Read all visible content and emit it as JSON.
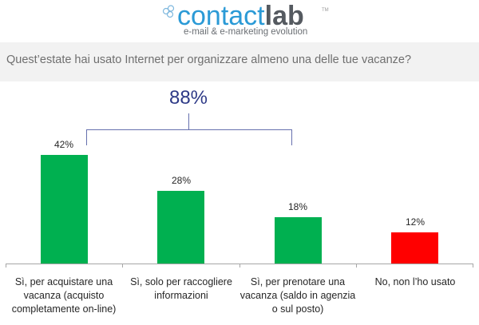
{
  "logo": {
    "word_part1": "contact",
    "word_part2": "lab",
    "tm": "TM",
    "tagline": "e-mail & e-marketing evolution",
    "icon": "bubbles-icon",
    "colors": {
      "contact": "#2b9ad6",
      "lab": "#555a60"
    }
  },
  "question": "Quest’estate hai usato Internet per organizzare almeno una delle tue vacanze?",
  "total_label": "88%",
  "chart_data": {
    "type": "bar",
    "title": "Quest’estate hai usato Internet per organizzare almeno una delle tue vacanze?",
    "categories": [
      "Sì, per acquistare una vacanza (acquisto completamente on-line)",
      "Sì, solo per raccogliere informazioni",
      "Sì, per prenotare una vacanza (saldo in agenzia o sul posto)",
      "No, non l’ho usato"
    ],
    "values": [
      42,
      28,
      18,
      12
    ],
    "value_labels": [
      "42%",
      "28%",
      "18%",
      "12%"
    ],
    "colors": [
      "#00b050",
      "#00b050",
      "#00b050",
      "#ff0000"
    ],
    "annotation": {
      "text": "88%",
      "spans_categories": [
        0,
        1,
        2
      ],
      "type": "bracket"
    },
    "xlabel": "",
    "ylabel": "",
    "ylim": [
      0,
      50
    ],
    "grid": false,
    "legend": "none"
  },
  "cat_lines": [
    [
      "Sì, per acquistare una",
      "vacanza (acquisto",
      "completamente  on-line)"
    ],
    [
      "Sì, solo per raccogliere",
      "informazioni"
    ],
    [
      "Sì, per  prenotare una",
      "vacanza (saldo in agenzia",
      "o sul posto)"
    ],
    [
      "No, non l’ho usato"
    ]
  ]
}
